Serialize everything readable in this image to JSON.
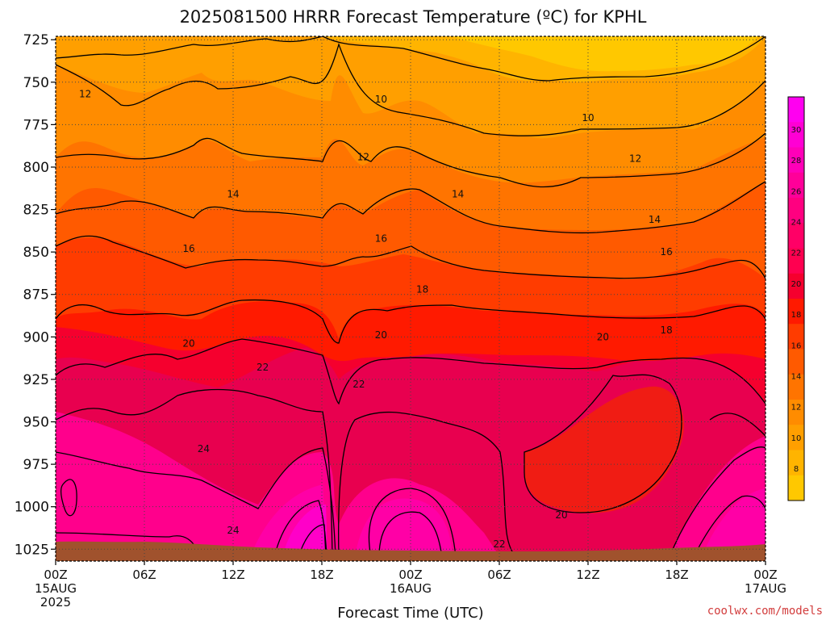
{
  "chart_data": {
    "type": "contour",
    "title": "2025081500 HRRR Forecast Temperature (ºC) for KPHL",
    "xlabel": "Forecast Time (UTC)",
    "ylabel": "",
    "credit": "coolwx.com/models",
    "y_ticks": [
      725,
      750,
      775,
      800,
      825,
      850,
      875,
      900,
      925,
      950,
      975,
      1000,
      1025
    ],
    "ylim": [
      1032,
      723
    ],
    "xlim": [
      0,
      48
    ],
    "x_ticks": [
      {
        "hour": 0,
        "lines": [
          "00Z",
          "15AUG",
          "2025"
        ]
      },
      {
        "hour": 6,
        "lines": [
          "06Z"
        ]
      },
      {
        "hour": 12,
        "lines": [
          "12Z"
        ]
      },
      {
        "hour": 18,
        "lines": [
          "18Z"
        ]
      },
      {
        "hour": 24,
        "lines": [
          "00Z",
          "16AUG"
        ]
      },
      {
        "hour": 30,
        "lines": [
          "06Z"
        ]
      },
      {
        "hour": 36,
        "lines": [
          "12Z"
        ]
      },
      {
        "hour": 42,
        "lines": [
          "18Z"
        ]
      },
      {
        "hour": 48,
        "lines": [
          "00Z",
          "17AUG"
        ]
      }
    ],
    "grid": true,
    "colorbar": {
      "position": "right",
      "labels": [
        "8",
        "10",
        "12",
        "14",
        "16",
        "18",
        "20",
        "22",
        "24",
        "26",
        "28",
        "30"
      ],
      "colors": [
        "#ffc800",
        "#ffb400",
        "#ff9f00",
        "#ff8c00",
        "#ff7400",
        "#ff5a00",
        "#ff3c00",
        "#ff1a00",
        "#f5002e",
        "#ff0050",
        "#ff0066",
        "#ff0080",
        "#ff0099",
        "#ff00b8",
        "#ff00d4",
        "#ff00f0"
      ]
    },
    "contour_labels": [
      {
        "text": "12",
        "hour": 2.0,
        "p": 757
      },
      {
        "text": "10",
        "hour": 22.0,
        "p": 760
      },
      {
        "text": "10",
        "hour": 36.0,
        "p": 771
      },
      {
        "text": "12",
        "hour": 20.8,
        "p": 794
      },
      {
        "text": "12",
        "hour": 39.2,
        "p": 795
      },
      {
        "text": "14",
        "hour": 12.0,
        "p": 816
      },
      {
        "text": "14",
        "hour": 27.2,
        "p": 816
      },
      {
        "text": "14",
        "hour": 40.5,
        "p": 831
      },
      {
        "text": "16",
        "hour": 9.0,
        "p": 848
      },
      {
        "text": "16",
        "hour": 22.0,
        "p": 842
      },
      {
        "text": "16",
        "hour": 41.3,
        "p": 850
      },
      {
        "text": "18",
        "hour": 24.8,
        "p": 872
      },
      {
        "text": "18",
        "hour": 41.3,
        "p": 896
      },
      {
        "text": "20",
        "hour": 9.0,
        "p": 904
      },
      {
        "text": "20",
        "hour": 22.0,
        "p": 899
      },
      {
        "text": "20",
        "hour": 37.0,
        "p": 900
      },
      {
        "text": "22",
        "hour": 14.0,
        "p": 918
      },
      {
        "text": "22",
        "hour": 20.5,
        "p": 928
      },
      {
        "text": "24",
        "hour": 10.0,
        "p": 966
      },
      {
        "text": "20",
        "hour": 34.2,
        "p": 1005
      },
      {
        "text": "24",
        "hour": 12.0,
        "p": 1014
      },
      {
        "text": "22",
        "hour": 30.0,
        "p": 1022
      }
    ]
  }
}
